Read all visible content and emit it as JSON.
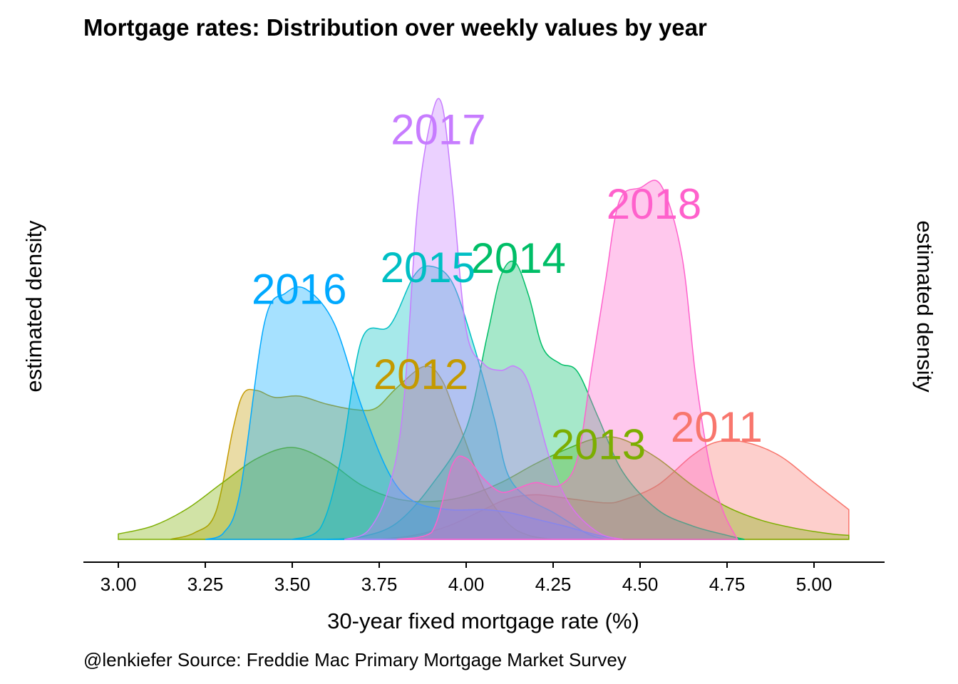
{
  "chart_data": {
    "type": "area",
    "title": "Mortgage rates: Distribution over weekly values by year",
    "xlabel": "30-year fixed mortgage rate (%)",
    "ylabel_left": "estimated density",
    "ylabel_right": "estimated density",
    "caption": "@lenkiefer Source: Freddie Mac Primary Mortgage Market Survey",
    "xlim": [
      2.9,
      5.2
    ],
    "ylim": [
      0,
      3.6
    ],
    "x_ticks": [
      "3.00",
      "3.25",
      "3.50",
      "3.75",
      "4.00",
      "4.25",
      "4.50",
      "4.75",
      "5.00"
    ],
    "x_tick_values": [
      3.0,
      3.25,
      3.5,
      3.75,
      4.0,
      4.25,
      4.5,
      4.75,
      5.0
    ],
    "grid": false,
    "legend": "none",
    "series": [
      {
        "name": "2011",
        "color": "#F8766D",
        "label_x": 4.72,
        "label_y": 0.83,
        "points": [
          [
            3.75,
            0
          ],
          [
            3.85,
            0.03
          ],
          [
            3.95,
            0.1
          ],
          [
            4.05,
            0.22
          ],
          [
            4.12,
            0.3
          ],
          [
            4.2,
            0.33
          ],
          [
            4.3,
            0.3
          ],
          [
            4.4,
            0.27
          ],
          [
            4.45,
            0.29
          ],
          [
            4.55,
            0.4
          ],
          [
            4.65,
            0.62
          ],
          [
            4.72,
            0.72
          ],
          [
            4.8,
            0.72
          ],
          [
            4.9,
            0.62
          ],
          [
            5.0,
            0.42
          ],
          [
            5.1,
            0.22
          ]
        ]
      },
      {
        "name": "2012",
        "color": "#C49A00",
        "label_x": 3.87,
        "label_y": 1.22,
        "points": [
          [
            3.15,
            0
          ],
          [
            3.22,
            0.05
          ],
          [
            3.28,
            0.2
          ],
          [
            3.33,
            0.82
          ],
          [
            3.36,
            1.08
          ],
          [
            3.4,
            1.1
          ],
          [
            3.45,
            1.05
          ],
          [
            3.52,
            1.06
          ],
          [
            3.6,
            1.0
          ],
          [
            3.68,
            0.96
          ],
          [
            3.74,
            0.97
          ],
          [
            3.8,
            1.12
          ],
          [
            3.88,
            1.28
          ],
          [
            3.93,
            1.18
          ],
          [
            3.98,
            0.85
          ],
          [
            4.05,
            0.38
          ],
          [
            4.12,
            0.12
          ],
          [
            4.18,
            0.03
          ],
          [
            4.25,
            0
          ]
        ]
      },
      {
        "name": "2013",
        "color": "#7CAE00",
        "label_x": 4.38,
        "label_y": 0.7,
        "points": [
          [
            3.0,
            0.04
          ],
          [
            3.1,
            0.1
          ],
          [
            3.2,
            0.23
          ],
          [
            3.3,
            0.42
          ],
          [
            3.4,
            0.6
          ],
          [
            3.5,
            0.68
          ],
          [
            3.6,
            0.58
          ],
          [
            3.7,
            0.4
          ],
          [
            3.8,
            0.3
          ],
          [
            3.9,
            0.28
          ],
          [
            4.0,
            0.32
          ],
          [
            4.1,
            0.42
          ],
          [
            4.2,
            0.56
          ],
          [
            4.3,
            0.68
          ],
          [
            4.38,
            0.75
          ],
          [
            4.45,
            0.74
          ],
          [
            4.55,
            0.6
          ],
          [
            4.65,
            0.4
          ],
          [
            4.75,
            0.24
          ],
          [
            4.85,
            0.14
          ],
          [
            4.95,
            0.08
          ],
          [
            5.05,
            0.04
          ],
          [
            5.1,
            0.03
          ]
        ]
      },
      {
        "name": "2014",
        "color": "#00BE67",
        "label_x": 4.15,
        "label_y": 2.08,
        "points": [
          [
            3.6,
            0
          ],
          [
            3.7,
            0.02
          ],
          [
            3.8,
            0.12
          ],
          [
            3.9,
            0.4
          ],
          [
            4.0,
            0.82
          ],
          [
            4.06,
            1.5
          ],
          [
            4.1,
            1.95
          ],
          [
            4.14,
            2.05
          ],
          [
            4.18,
            1.8
          ],
          [
            4.22,
            1.42
          ],
          [
            4.27,
            1.3
          ],
          [
            4.32,
            1.24
          ],
          [
            4.38,
            0.9
          ],
          [
            4.45,
            0.5
          ],
          [
            4.55,
            0.22
          ],
          [
            4.65,
            0.1
          ],
          [
            4.75,
            0.03
          ],
          [
            4.8,
            0
          ]
        ]
      },
      {
        "name": "2015",
        "color": "#00BFC4",
        "label_x": 3.89,
        "label_y": 2.01,
        "points": [
          [
            3.5,
            0
          ],
          [
            3.58,
            0.08
          ],
          [
            3.64,
            0.6
          ],
          [
            3.7,
            1.48
          ],
          [
            3.78,
            1.58
          ],
          [
            3.85,
            1.95
          ],
          [
            3.9,
            2.02
          ],
          [
            3.96,
            1.9
          ],
          [
            4.02,
            1.45
          ],
          [
            4.08,
            0.9
          ],
          [
            4.12,
            0.48
          ],
          [
            4.18,
            0.3
          ],
          [
            4.25,
            0.2
          ],
          [
            4.3,
            0.12
          ],
          [
            4.35,
            0.04
          ],
          [
            4.4,
            0
          ]
        ]
      },
      {
        "name": "2016",
        "color": "#00A9FF",
        "label_x": 3.52,
        "label_y": 1.85,
        "points": [
          [
            3.25,
            0
          ],
          [
            3.3,
            0.04
          ],
          [
            3.35,
            0.35
          ],
          [
            3.42,
            1.6
          ],
          [
            3.48,
            1.82
          ],
          [
            3.54,
            1.85
          ],
          [
            3.62,
            1.6
          ],
          [
            3.7,
            0.98
          ],
          [
            3.78,
            0.48
          ],
          [
            3.85,
            0.28
          ],
          [
            3.95,
            0.22
          ],
          [
            4.05,
            0.22
          ],
          [
            4.12,
            0.2
          ],
          [
            4.2,
            0.15
          ],
          [
            4.28,
            0.1
          ],
          [
            4.38,
            0.03
          ],
          [
            4.45,
            0
          ]
        ]
      },
      {
        "name": "2017",
        "color": "#C77CFF",
        "label_x": 3.92,
        "label_y": 3.03,
        "points": [
          [
            3.65,
            0
          ],
          [
            3.72,
            0.07
          ],
          [
            3.78,
            0.4
          ],
          [
            3.82,
            1.0
          ],
          [
            3.86,
            2.45
          ],
          [
            3.9,
            3.12
          ],
          [
            3.93,
            3.22
          ],
          [
            3.96,
            2.6
          ],
          [
            4.0,
            1.55
          ],
          [
            4.05,
            1.3
          ],
          [
            4.1,
            1.25
          ],
          [
            4.14,
            1.28
          ],
          [
            4.18,
            1.15
          ],
          [
            4.24,
            0.6
          ],
          [
            4.3,
            0.25
          ],
          [
            4.38,
            0.05
          ],
          [
            4.45,
            0
          ]
        ]
      },
      {
        "name": "2018",
        "color": "#FF61CC",
        "label_x": 4.54,
        "label_y": 2.48,
        "points": [
          [
            3.8,
            0
          ],
          [
            3.9,
            0.05
          ],
          [
            3.96,
            0.55
          ],
          [
            4.0,
            0.6
          ],
          [
            4.05,
            0.45
          ],
          [
            4.1,
            0.35
          ],
          [
            4.15,
            0.38
          ],
          [
            4.2,
            0.42
          ],
          [
            4.27,
            0.4
          ],
          [
            4.32,
            0.6
          ],
          [
            4.36,
            1.25
          ],
          [
            4.4,
            1.9
          ],
          [
            4.44,
            2.5
          ],
          [
            4.5,
            2.6
          ],
          [
            4.56,
            2.62
          ],
          [
            4.62,
            2.1
          ],
          [
            4.66,
            1.2
          ],
          [
            4.7,
            0.55
          ],
          [
            4.74,
            0.2
          ],
          [
            4.78,
            0
          ]
        ]
      }
    ]
  }
}
